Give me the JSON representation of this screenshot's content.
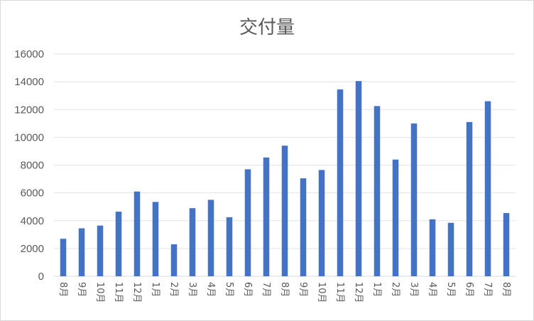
{
  "chart_data": {
    "type": "bar",
    "title": "交付量",
    "xlabel": "",
    "ylabel": "",
    "ylim": [
      0,
      16000
    ],
    "yticks": [
      0,
      2000,
      4000,
      6000,
      8000,
      10000,
      12000,
      14000,
      16000
    ],
    "grid": true,
    "legend": "none",
    "bar_color": "#4472c4",
    "categories": [
      "8月",
      "9月",
      "10月",
      "11月",
      "12月",
      "1月",
      "2月",
      "3月",
      "4月",
      "5月",
      "6月",
      "7月",
      "8月",
      "9月",
      "10月",
      "11月",
      "12月",
      "1月",
      "2月",
      "3月",
      "4月",
      "5月",
      "6月",
      "7月",
      "8月"
    ],
    "values": [
      2700,
      3450,
      3650,
      4650,
      6100,
      5350,
      2300,
      4900,
      5500,
      4250,
      7700,
      8550,
      9400,
      7050,
      7650,
      13450,
      14050,
      12250,
      8400,
      11000,
      4100,
      3850,
      11100,
      12600,
      4550
    ]
  }
}
